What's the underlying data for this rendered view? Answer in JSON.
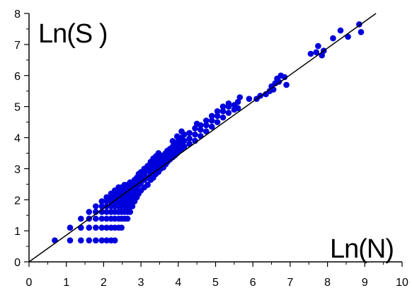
{
  "chart_data": {
    "type": "scatter",
    "title": "",
    "xlabel": "Ln(N)",
    "ylabel": "Ln(S )",
    "xlim": [
      0,
      10
    ],
    "ylim": [
      0,
      8
    ],
    "xticks": [
      0,
      1,
      2,
      3,
      4,
      5,
      6,
      7,
      8,
      9,
      10
    ],
    "yticks": [
      0,
      1,
      2,
      3,
      4,
      5,
      6,
      7,
      8
    ],
    "grid": false,
    "colors": {
      "points": "#0000dd",
      "line": "#000000",
      "axis": "#000000"
    },
    "series": [
      {
        "type": "scatter",
        "points": [
          [
            0.69,
            0.69
          ],
          [
            1.1,
            0.69
          ],
          [
            1.1,
            1.1
          ],
          [
            1.39,
            0.69
          ],
          [
            1.39,
            1.1
          ],
          [
            1.39,
            1.39
          ],
          [
            1.61,
            0.69
          ],
          [
            1.61,
            1.1
          ],
          [
            1.61,
            1.39
          ],
          [
            1.61,
            1.61
          ],
          [
            1.79,
            0.69
          ],
          [
            1.79,
            1.1
          ],
          [
            1.79,
            1.39
          ],
          [
            1.79,
            1.61
          ],
          [
            1.79,
            1.79
          ],
          [
            1.95,
            0.69
          ],
          [
            1.95,
            1.1
          ],
          [
            1.95,
            1.39
          ],
          [
            1.95,
            1.61
          ],
          [
            1.95,
            1.79
          ],
          [
            1.95,
            1.95
          ],
          [
            2.08,
            0.69
          ],
          [
            2.08,
            1.1
          ],
          [
            2.08,
            1.39
          ],
          [
            2.08,
            1.61
          ],
          [
            2.08,
            1.79
          ],
          [
            2.08,
            1.95
          ],
          [
            2.08,
            2.08
          ],
          [
            2.2,
            0.69
          ],
          [
            2.2,
            1.1
          ],
          [
            2.2,
            1.39
          ],
          [
            2.2,
            1.61
          ],
          [
            2.2,
            1.79
          ],
          [
            2.2,
            1.95
          ],
          [
            2.2,
            2.08
          ],
          [
            2.2,
            2.2
          ],
          [
            2.3,
            0.69
          ],
          [
            2.3,
            1.1
          ],
          [
            2.3,
            1.39
          ],
          [
            2.3,
            1.61
          ],
          [
            2.3,
            1.79
          ],
          [
            2.3,
            1.95
          ],
          [
            2.3,
            2.08
          ],
          [
            2.3,
            2.2
          ],
          [
            2.3,
            2.3
          ],
          [
            2.4,
            1.1
          ],
          [
            2.4,
            1.39
          ],
          [
            2.4,
            1.61
          ],
          [
            2.4,
            1.79
          ],
          [
            2.4,
            1.95
          ],
          [
            2.4,
            2.08
          ],
          [
            2.4,
            2.2
          ],
          [
            2.4,
            2.3
          ],
          [
            2.4,
            2.4
          ],
          [
            2.48,
            1.1
          ],
          [
            2.48,
            1.39
          ],
          [
            2.48,
            1.61
          ],
          [
            2.48,
            1.79
          ],
          [
            2.48,
            1.95
          ],
          [
            2.48,
            2.08
          ],
          [
            2.48,
            2.2
          ],
          [
            2.48,
            2.3
          ],
          [
            2.48,
            2.4
          ],
          [
            2.56,
            1.39
          ],
          [
            2.56,
            1.61
          ],
          [
            2.56,
            1.79
          ],
          [
            2.56,
            1.95
          ],
          [
            2.56,
            2.08
          ],
          [
            2.56,
            2.2
          ],
          [
            2.56,
            2.3
          ],
          [
            2.56,
            2.48
          ],
          [
            2.64,
            1.39
          ],
          [
            2.64,
            1.61
          ],
          [
            2.64,
            1.79
          ],
          [
            2.64,
            1.95
          ],
          [
            2.64,
            2.08
          ],
          [
            2.64,
            2.3
          ],
          [
            2.64,
            2.48
          ],
          [
            2.71,
            1.61
          ],
          [
            2.71,
            1.79
          ],
          [
            2.71,
            1.95
          ],
          [
            2.71,
            2.2
          ],
          [
            2.71,
            2.4
          ],
          [
            2.71,
            2.56
          ],
          [
            2.77,
            1.79
          ],
          [
            2.77,
            2.08
          ],
          [
            2.77,
            2.3
          ],
          [
            2.77,
            2.48
          ],
          [
            2.83,
            1.95
          ],
          [
            2.83,
            2.2
          ],
          [
            2.83,
            2.4
          ],
          [
            2.83,
            2.64
          ],
          [
            2.89,
            2.08
          ],
          [
            2.89,
            2.3
          ],
          [
            2.89,
            2.56
          ],
          [
            2.89,
            2.71
          ],
          [
            2.94,
            2.2
          ],
          [
            2.94,
            2.48
          ],
          [
            2.94,
            2.64
          ],
          [
            2.94,
            2.83
          ],
          [
            3.0,
            2.3
          ],
          [
            3.0,
            2.56
          ],
          [
            3.0,
            2.77
          ],
          [
            3.0,
            2.89
          ],
          [
            3.09,
            2.4
          ],
          [
            3.09,
            2.64
          ],
          [
            3.09,
            2.83
          ],
          [
            3.09,
            3.0
          ],
          [
            3.18,
            2.48
          ],
          [
            3.18,
            2.71
          ],
          [
            3.18,
            2.94
          ],
          [
            3.18,
            3.09
          ],
          [
            3.26,
            2.64
          ],
          [
            3.26,
            2.83
          ],
          [
            3.26,
            3.04
          ],
          [
            3.26,
            3.22
          ],
          [
            3.33,
            2.71
          ],
          [
            3.33,
            2.94
          ],
          [
            3.33,
            3.14
          ],
          [
            3.33,
            3.33
          ],
          [
            3.4,
            2.83
          ],
          [
            3.4,
            3.0
          ],
          [
            3.4,
            3.2
          ],
          [
            3.4,
            3.4
          ],
          [
            3.47,
            2.9
          ],
          [
            3.47,
            3.09
          ],
          [
            3.47,
            3.3
          ],
          [
            3.47,
            3.5
          ],
          [
            3.53,
            3.0
          ],
          [
            3.53,
            3.18
          ],
          [
            3.53,
            3.37
          ],
          [
            3.6,
            3.04
          ],
          [
            3.6,
            3.26
          ],
          [
            3.6,
            3.43
          ],
          [
            3.66,
            3.14
          ],
          [
            3.66,
            3.33
          ],
          [
            3.66,
            3.5
          ],
          [
            3.71,
            3.22
          ],
          [
            3.71,
            3.4
          ],
          [
            3.71,
            3.58
          ],
          [
            3.78,
            3.3
          ],
          [
            3.78,
            3.47
          ],
          [
            3.78,
            3.64
          ],
          [
            3.85,
            3.37
          ],
          [
            3.85,
            3.53
          ],
          [
            3.85,
            3.71
          ],
          [
            3.85,
            3.89
          ],
          [
            3.91,
            3.43
          ],
          [
            3.91,
            3.6
          ],
          [
            3.91,
            3.78
          ],
          [
            3.97,
            3.5
          ],
          [
            3.97,
            3.66
          ],
          [
            3.97,
            3.85
          ],
          [
            3.97,
            4.04
          ],
          [
            4.03,
            3.58
          ],
          [
            4.03,
            3.76
          ],
          [
            4.03,
            3.93
          ],
          [
            4.09,
            3.64
          ],
          [
            4.09,
            3.83
          ],
          [
            4.09,
            4.0
          ],
          [
            4.09,
            4.2
          ],
          [
            4.16,
            3.71
          ],
          [
            4.16,
            3.9
          ],
          [
            4.16,
            4.1
          ],
          [
            4.3,
            3.8
          ],
          [
            4.3,
            3.97
          ],
          [
            4.3,
            4.15
          ],
          [
            4.45,
            3.9
          ],
          [
            4.45,
            4.1
          ],
          [
            4.45,
            4.3
          ],
          [
            4.5,
            4.45
          ],
          [
            4.6,
            4.05
          ],
          [
            4.6,
            4.25
          ],
          [
            4.6,
            4.4
          ],
          [
            4.75,
            4.2
          ],
          [
            4.75,
            4.4
          ],
          [
            4.75,
            4.55
          ],
          [
            4.9,
            4.35
          ],
          [
            4.9,
            4.55
          ],
          [
            4.9,
            4.7
          ],
          [
            5.05,
            4.5
          ],
          [
            5.05,
            4.7
          ],
          [
            5.05,
            4.85
          ],
          [
            5.2,
            4.65
          ],
          [
            5.2,
            4.85
          ],
          [
            5.2,
            5.0
          ],
          [
            5.35,
            4.8
          ],
          [
            5.35,
            5.0
          ],
          [
            5.35,
            5.1
          ],
          [
            5.5,
            4.9
          ],
          [
            5.5,
            5.05
          ],
          [
            5.6,
            4.95
          ],
          [
            5.6,
            5.15
          ],
          [
            5.65,
            5.3
          ],
          [
            5.9,
            5.25
          ],
          [
            6.1,
            5.25
          ],
          [
            6.2,
            5.35
          ],
          [
            6.35,
            5.4
          ],
          [
            6.45,
            5.5
          ],
          [
            6.5,
            5.65
          ],
          [
            6.55,
            5.55
          ],
          [
            6.6,
            5.75
          ],
          [
            6.65,
            5.9
          ],
          [
            6.7,
            5.8
          ],
          [
            6.75,
            6.0
          ],
          [
            6.85,
            5.95
          ],
          [
            6.9,
            5.7
          ],
          [
            7.55,
            6.7
          ],
          [
            7.7,
            6.75
          ],
          [
            7.75,
            6.95
          ],
          [
            7.85,
            6.65
          ],
          [
            7.9,
            6.8
          ],
          [
            8.15,
            7.2
          ],
          [
            8.35,
            7.45
          ],
          [
            8.55,
            7.25
          ],
          [
            8.85,
            7.65
          ],
          [
            8.9,
            7.4
          ]
        ]
      },
      {
        "type": "line",
        "points": [
          [
            0,
            0
          ],
          [
            9.3,
            8.0
          ]
        ]
      }
    ]
  }
}
